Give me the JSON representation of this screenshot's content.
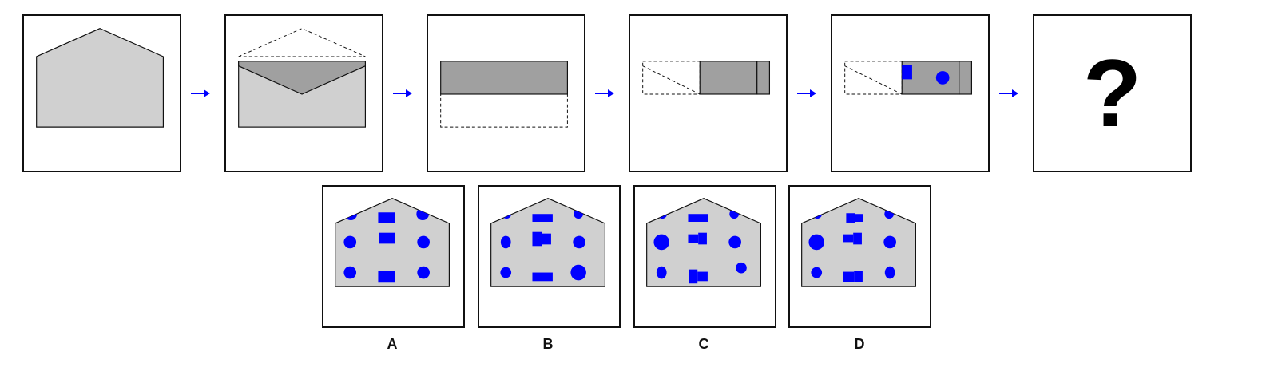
{
  "colors": {
    "shape_fill": "#d0d0d0",
    "flap_fill": "#a0a0a0",
    "marks": "#0000ff",
    "arrow": "#0000ff",
    "outline": "#111111"
  },
  "sequence": {
    "steps": [
      {
        "step": 1,
        "description_icon": "house-pentagon-icon"
      },
      {
        "step": 2,
        "description_icon": "envelope-fold-down-icon"
      },
      {
        "step": 3,
        "description_icon": "strip-fold-up-icon"
      },
      {
        "step": 4,
        "description_icon": "strip-fold-left-icon"
      },
      {
        "step": 5,
        "description_icon": "punched-strip-icon"
      }
    ],
    "unknown": "?"
  },
  "options": [
    {
      "label": "A"
    },
    {
      "label": "B"
    },
    {
      "label": "C"
    },
    {
      "label": "D"
    }
  ]
}
